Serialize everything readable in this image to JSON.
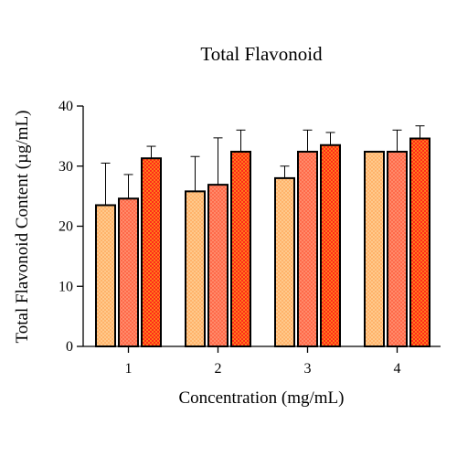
{
  "chart_data": {
    "type": "bar",
    "title": "Total Flavonoid",
    "xlabel": "Concentration (mg/mL)",
    "ylabel": "Total Flavonoid Content (µg/mL)",
    "ylim": [
      0,
      40
    ],
    "yticks": [
      "0",
      "10",
      "20",
      "30",
      "40"
    ],
    "categories": [
      "1",
      "2",
      "3",
      "4"
    ],
    "grid": false,
    "legend": "none",
    "series": [
      {
        "color": "#ffc98c",
        "pattern": "checker",
        "values": [
          23.5,
          25.8,
          28.0,
          32.4
        ],
        "error": [
          7.0,
          5.8,
          2.0,
          0.0
        ]
      },
      {
        "color": "#ff8a6a",
        "pattern": "checker",
        "values": [
          24.6,
          26.9,
          32.4,
          32.4
        ],
        "error": [
          4.0,
          7.8,
          3.6,
          3.6
        ]
      },
      {
        "color": "#ff2a1a",
        "pattern": "checker",
        "values": [
          31.3,
          32.4,
          33.5,
          34.6
        ],
        "error": [
          2.0,
          3.6,
          2.1,
          2.1
        ]
      }
    ]
  }
}
